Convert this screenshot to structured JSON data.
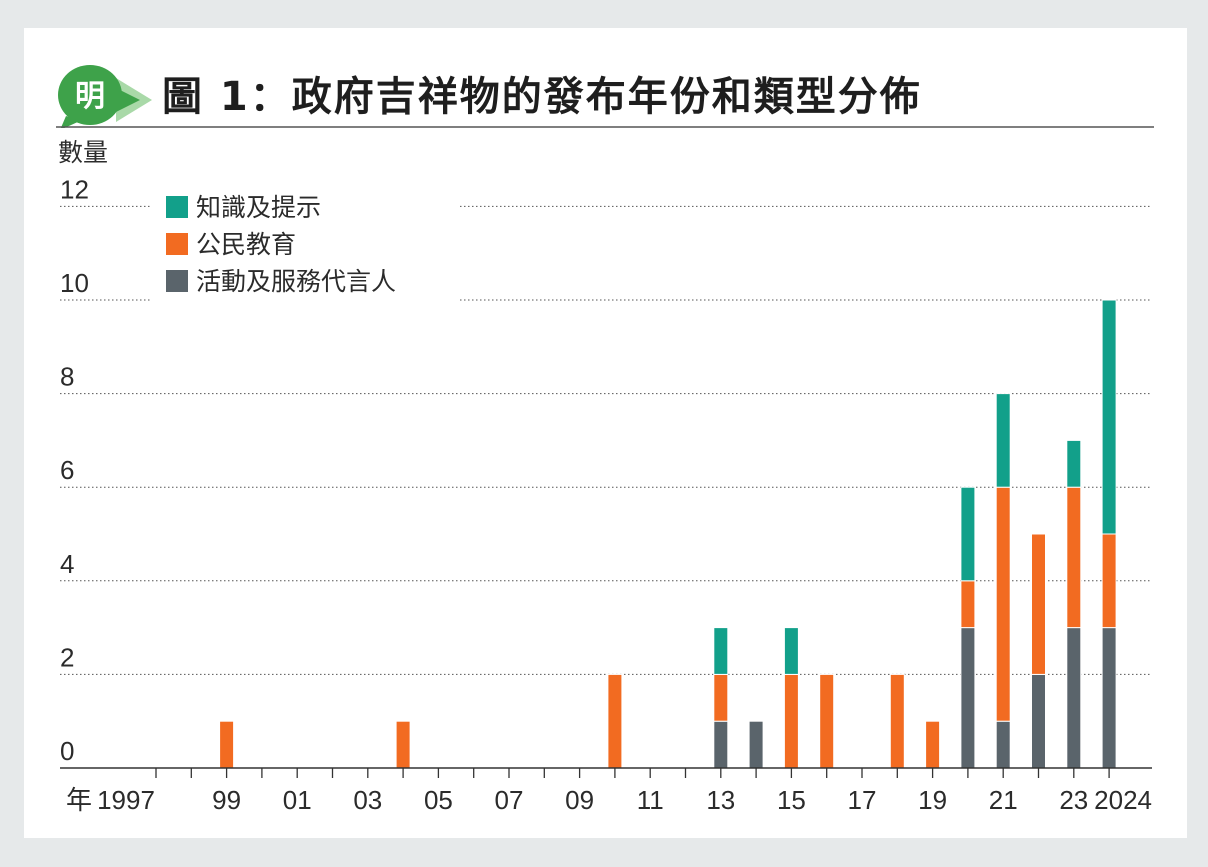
{
  "header": {
    "logo_text": "明",
    "title": "圖 1：政府吉祥物的發布年份和類型分佈"
  },
  "colors": {
    "knowledge": "#12a08a",
    "civic": "#f26b21",
    "activity": "#5a646b",
    "logo_green": "#3ea24a",
    "logo_light": "#a9d9a8"
  },
  "chart_data": {
    "type": "bar",
    "stacked": true,
    "title": "圖 1：政府吉祥物的發布年份和類型分佈",
    "ylabel": "數量",
    "xlabel_prefix": "年",
    "ylim": [
      0,
      12
    ],
    "yticks": [
      0,
      2,
      4,
      6,
      8,
      10,
      12
    ],
    "grid": true,
    "legend_position": "top-left",
    "categories": [
      1997,
      1998,
      1999,
      2000,
      2001,
      2002,
      2003,
      2004,
      2005,
      2006,
      2007,
      2008,
      2009,
      2010,
      2011,
      2012,
      2013,
      2014,
      2015,
      2016,
      2017,
      2018,
      2019,
      2020,
      2021,
      2022,
      2023,
      2024
    ],
    "xtick_labels": [
      {
        "year": 1997,
        "label": "1997"
      },
      {
        "year": 1999,
        "label": "99"
      },
      {
        "year": 2001,
        "label": "01"
      },
      {
        "year": 2003,
        "label": "03"
      },
      {
        "year": 2005,
        "label": "05"
      },
      {
        "year": 2007,
        "label": "07"
      },
      {
        "year": 2009,
        "label": "09"
      },
      {
        "year": 2011,
        "label": "11"
      },
      {
        "year": 2013,
        "label": "13"
      },
      {
        "year": 2015,
        "label": "15"
      },
      {
        "year": 2017,
        "label": "17"
      },
      {
        "year": 2019,
        "label": "19"
      },
      {
        "year": 2021,
        "label": "21"
      },
      {
        "year": 2023,
        "label": "23"
      },
      {
        "year": 2024,
        "label": "2024"
      }
    ],
    "series": [
      {
        "name": "活動及服務代言人",
        "key": "activity",
        "values": [
          0,
          0,
          0,
          0,
          0,
          0,
          0,
          0,
          0,
          0,
          0,
          0,
          0,
          0,
          0,
          0,
          1,
          1,
          0,
          0,
          0,
          0,
          0,
          3,
          1,
          2,
          3,
          3
        ]
      },
      {
        "name": "公民教育",
        "key": "civic",
        "values": [
          0,
          0,
          1,
          0,
          0,
          0,
          0,
          1,
          0,
          0,
          0,
          0,
          0,
          2,
          0,
          0,
          1,
          0,
          2,
          2,
          0,
          2,
          1,
          1,
          5,
          3,
          3,
          2
        ]
      },
      {
        "name": "知識及提示",
        "key": "knowledge",
        "values": [
          0,
          0,
          0,
          0,
          0,
          0,
          0,
          0,
          0,
          0,
          0,
          0,
          0,
          0,
          0,
          0,
          1,
          0,
          1,
          0,
          0,
          0,
          0,
          2,
          2,
          0,
          1,
          5
        ]
      }
    ],
    "legend_order": [
      "knowledge",
      "civic",
      "activity"
    ]
  }
}
